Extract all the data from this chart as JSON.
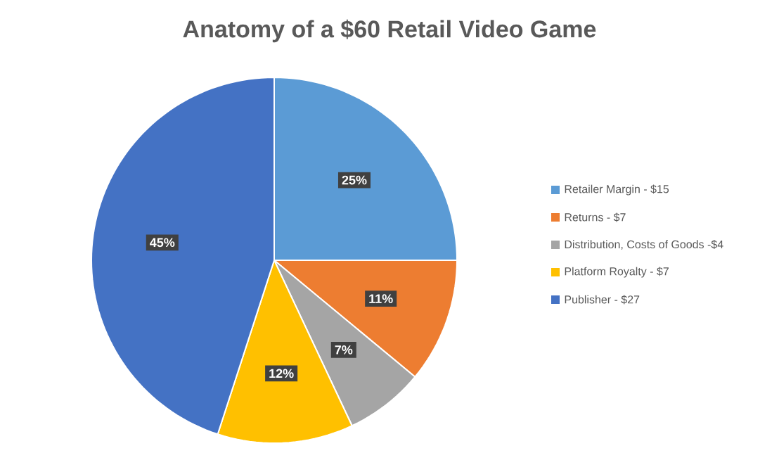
{
  "chart_data": {
    "type": "pie",
    "title": "Anatomy of a $60 Retail Video Game",
    "categories": [
      "Retailer Margin - $15",
      "Returns - $7",
      "Distribution, Costs of Goods -$4",
      "Platform Royalty - $7",
      "Publisher - $27"
    ],
    "values": [
      25,
      11,
      7,
      12,
      45
    ],
    "value_labels": [
      "25%",
      "11%",
      "7%",
      "12%",
      "45%"
    ],
    "colors": [
      "#5b9bd5",
      "#ed7d31",
      "#a5a5a5",
      "#ffc000",
      "#4472c4"
    ],
    "legend": "right"
  }
}
